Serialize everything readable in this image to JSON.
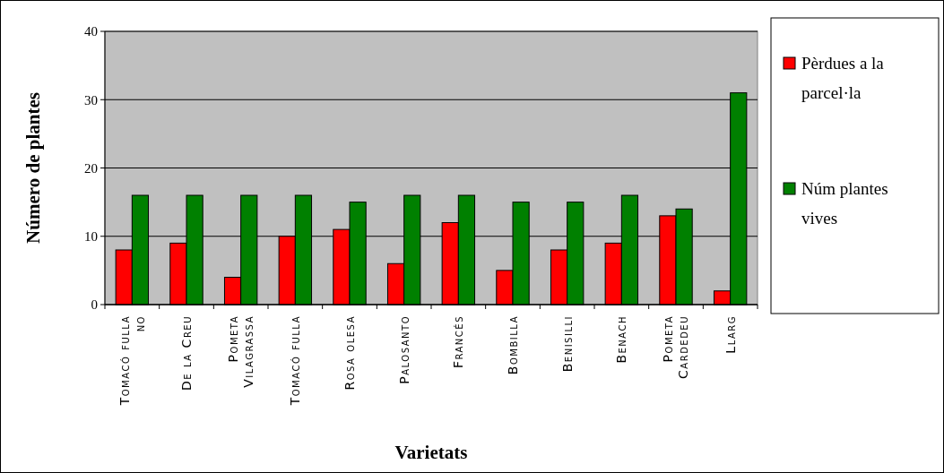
{
  "chart_data": {
    "type": "bar",
    "xlabel": "Varietats",
    "ylabel": "Número de plantes",
    "categories": [
      "Tomacó fulla no",
      "De la Creu",
      "Pometa Vilagrassa",
      "Tomacó fulla",
      "Rosa olesa",
      "Palosanto",
      "Francés",
      "Bombilla",
      "Benisilli",
      "Benach",
      "Pometa Cardedeu",
      "Llarg"
    ],
    "series": [
      {
        "name": "Pèrdues a la parcel·la",
        "color": "#ff0000",
        "values": [
          8,
          9,
          4,
          10,
          11,
          6,
          12,
          5,
          8,
          9,
          13,
          2
        ]
      },
      {
        "name": "Núm plantes vives",
        "color": "#008000",
        "values": [
          16,
          16,
          16,
          16,
          15,
          16,
          16,
          15,
          15,
          16,
          14,
          31
        ]
      }
    ],
    "ylim": [
      0,
      40
    ],
    "yticks": [
      0,
      10,
      20,
      30,
      40
    ],
    "grid": "y",
    "legend": "right"
  }
}
